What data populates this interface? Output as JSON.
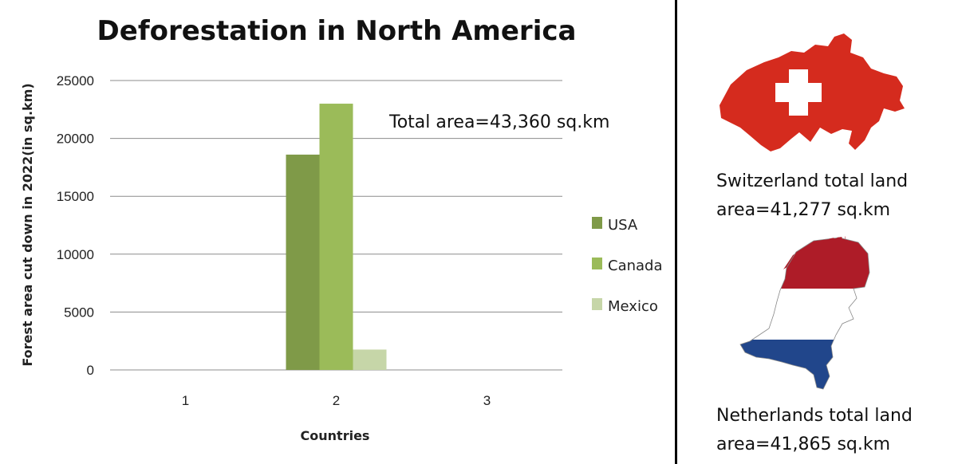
{
  "chart_data": {
    "type": "bar",
    "title": "Deforestation in North America",
    "xlabel": "Countries",
    "ylabel": "Forest area cut down in  2022(in sq.km)",
    "categories": [
      "1",
      "2",
      "3"
    ],
    "series": [
      {
        "name": "USA",
        "color": "#7f9a48",
        "values": [
          0,
          18600,
          0
        ]
      },
      {
        "name": "Canada",
        "color": "#9bbb59",
        "values": [
          0,
          23000,
          0
        ]
      },
      {
        "name": "Mexico",
        "color": "#c6d6a8",
        "values": [
          0,
          1760,
          0
        ]
      }
    ],
    "ylim": [
      0,
      25000
    ],
    "yticks": [
      0,
      5000,
      10000,
      15000,
      20000,
      25000
    ],
    "grid": true,
    "legend_position": "right",
    "annotation": "Total area=43,360 sq.km"
  },
  "side_panel": {
    "switzerland": {
      "icon": "switzerland-flag-map-icon",
      "line1": "Switzerland total land",
      "line2": "area=41,277 sq.km"
    },
    "netherlands": {
      "icon": "netherlands-flag-map-icon",
      "line1": "Netherlands total land",
      "line2": "area=41,865 sq.km"
    }
  }
}
